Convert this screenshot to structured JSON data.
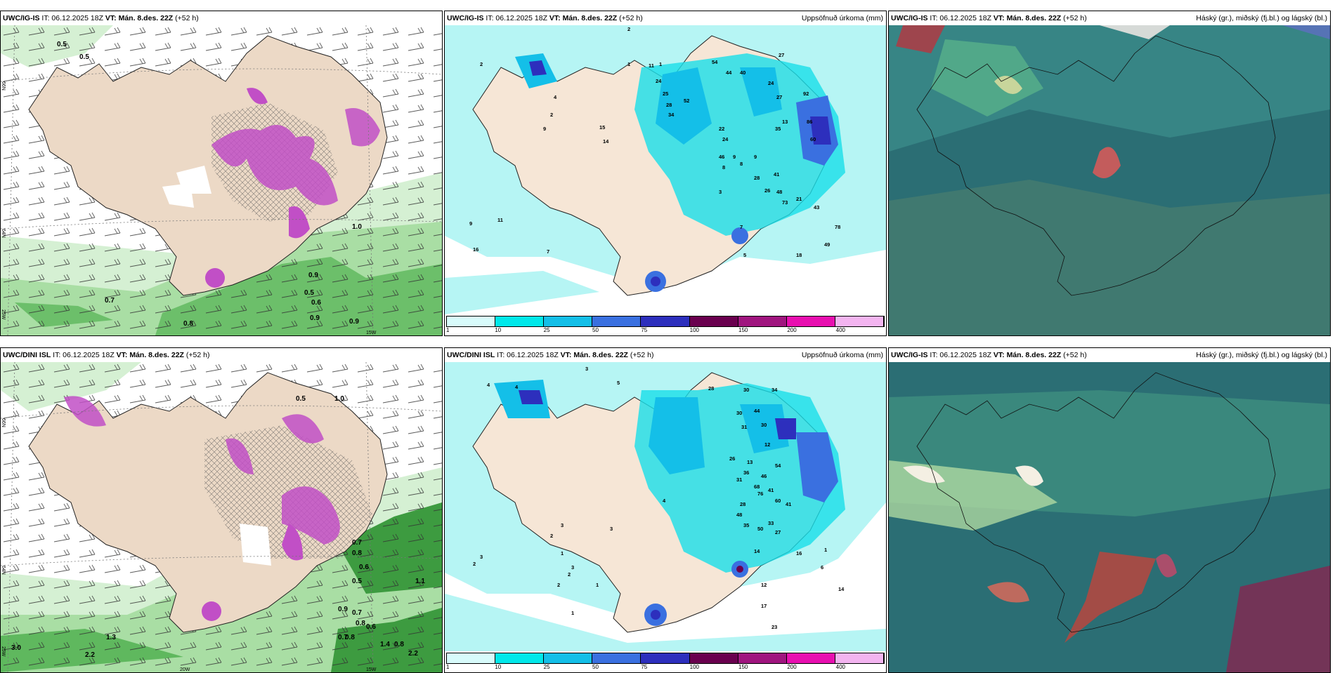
{
  "panels": [
    {
      "model": "UWC/IG-IS",
      "it": "IT: 06.12.2025 18Z",
      "vt_label": "VT:",
      "vt": "Mán. 8.des. 22Z",
      "lead": "(+52 h)",
      "right": ""
    },
    {
      "model": "UWC/IG-IS",
      "it": "IT: 06.12.2025 18Z",
      "vt_label": "VT:",
      "vt": "Mán. 8.des. 22Z",
      "lead": "(+52 h)",
      "right": "Uppsöfnuð úrkoma (mm)"
    },
    {
      "model": "UWC/IG-IS",
      "it": "IT: 06.12.2025 18Z",
      "vt_label": "VT:",
      "vt": "Mán. 8.des. 22Z",
      "lead": "(+52 h)",
      "right": "Háský (gr.), miðský (fj.bl.) og lágský (bl.)"
    },
    {
      "model": "UWC/DINI ISL",
      "it": "IT: 06.12.2025 18Z",
      "vt_label": "VT:",
      "vt": "Mán. 8.des. 22Z",
      "lead": "(+52 h)",
      "right": ""
    },
    {
      "model": "UWC/DINI ISL",
      "it": "IT: 06.12.2025 18Z",
      "vt_label": "VT:",
      "vt": "Mán. 8.des. 22Z",
      "lead": "(+52 h)",
      "right": "Uppsöfnuð úrkoma (mm)"
    },
    {
      "model": "UWC/IG-IS",
      "it": "IT: 06.12.2025 18Z",
      "vt_label": "VT:",
      "vt": "Mán. 8.des. 22Z",
      "lead": "(+52 h)",
      "right": "Háský (gr.), miðský (fj.bl.) og lágský (bl.)"
    }
  ],
  "grid_labels": {
    "lat66": "66N",
    "lat64": "64N",
    "lon25": "25W",
    "lon20": "20W",
    "lon15": "15W"
  },
  "legend": {
    "colors": [
      "#d8fbfb",
      "#00e8ea",
      "#14bfe8",
      "#3a70e0",
      "#2d2fbd",
      "#6a004f",
      "#a0157f",
      "#e80fb0",
      "#f3b4f0"
    ],
    "labels": [
      "1",
      "10",
      "25",
      "50",
      "75",
      "100",
      "150",
      "200",
      "400"
    ]
  },
  "map_labels": {
    "p1": [
      "0.5",
      "0.5",
      "0.9",
      "0.5",
      "0.6",
      "0.9",
      "0.9",
      "0.7",
      "0.8",
      "1.0"
    ],
    "p2": [
      "2",
      "2",
      "1",
      "1",
      "2",
      "4",
      "9",
      "9",
      "11",
      "16",
      "7",
      "7",
      "5",
      "3",
      "15",
      "14",
      "11",
      "24",
      "25",
      "28",
      "34",
      "52",
      "54",
      "44",
      "40",
      "27",
      "24",
      "27",
      "13",
      "22",
      "24",
      "46",
      "8",
      "9",
      "8",
      "9",
      "35",
      "92",
      "86",
      "60",
      "41",
      "28",
      "26",
      "48",
      "73",
      "21",
      "43",
      "78",
      "49",
      "18"
    ],
    "p4": [
      "0.5",
      "1.0",
      "0.7",
      "0.8",
      "0.6",
      "0.5",
      "0.9",
      "0.7",
      "0.8",
      "0.6",
      "0.7",
      "0.8",
      "3.0",
      "2.2",
      "1.3",
      "1.4",
      "2.2",
      "1.1",
      "0.8"
    ],
    "p5": [
      "4",
      "4",
      "3",
      "5",
      "3",
      "3",
      "2",
      "1",
      "3",
      "2",
      "2",
      "1",
      "2",
      "3",
      "1",
      "14",
      "17",
      "23",
      "12",
      "6",
      "4",
      "28",
      "30",
      "30",
      "31",
      "30",
      "44",
      "34",
      "13",
      "26",
      "31",
      "36",
      "46",
      "68",
      "76",
      "41",
      "54",
      "12",
      "41",
      "60",
      "28",
      "48",
      "35",
      "50",
      "33",
      "27",
      "14",
      "16",
      "1"
    ]
  },
  "colors": {
    "land": "#ecd9c6",
    "sea_precip": "#b6f5f4",
    "wind_green": "#8fd28a",
    "purple": "#c14fc6",
    "cloud_bg": "#2b6e74"
  }
}
